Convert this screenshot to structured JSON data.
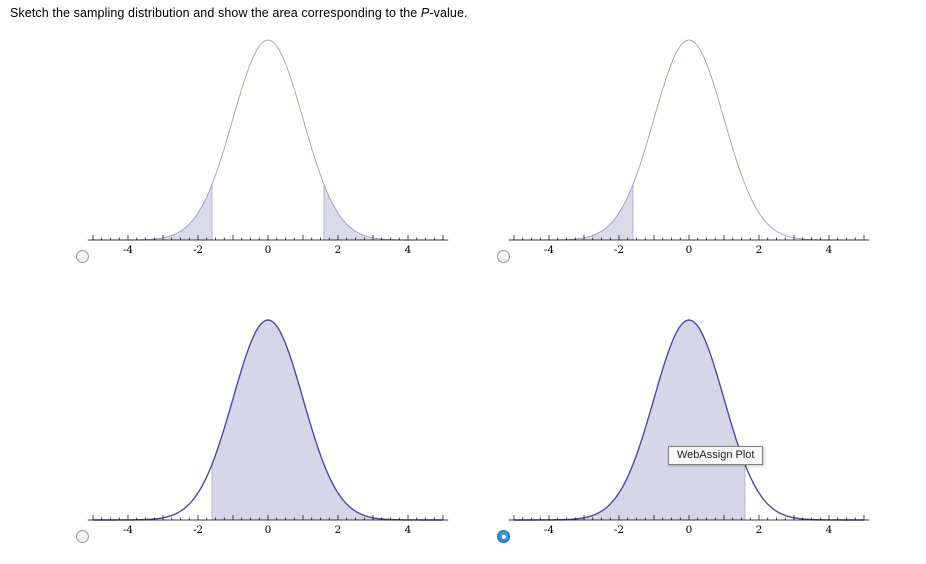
{
  "question": {
    "prefix": "Sketch the sampling distribution and show the area corresponding to the ",
    "italic": "P",
    "suffix": "-value."
  },
  "tooltip": {
    "label": "WebAssign Plot"
  },
  "options": {
    "count": 4,
    "selected_index": 3
  },
  "colors": {
    "background": "#ffffff",
    "axis": "#000000",
    "shade_edge": "#a0a0c4",
    "radio_selected": "#2a87d8",
    "radio_border": "#9a9a9a"
  },
  "chart_data": [
    {
      "type": "area",
      "name": "two-tailed",
      "description": "Standard normal curve with both tails shaded beyond |z| = 1.6 (two-tailed P-value)",
      "distribution": "standard normal pdf",
      "x_range": [
        -5,
        5
      ],
      "x_tick_values": [
        -4,
        -2,
        0,
        2,
        4
      ],
      "x_tick_labels": [
        "-4",
        "-2",
        "0",
        "2",
        "4"
      ],
      "minor_tick_step": 0.25,
      "shaded_regions": [
        [
          -5,
          -1.6
        ],
        [
          1.6,
          5
        ]
      ],
      "curve_color": "#9292c6",
      "curve_width": 0.8,
      "shade_color": "#dadae9",
      "selected": false
    },
    {
      "type": "area",
      "name": "left-tail",
      "description": "Standard normal curve with left tail shaded below z = -1.6",
      "distribution": "standard normal pdf",
      "x_range": [
        -5,
        5
      ],
      "x_tick_values": [
        -4,
        -2,
        0,
        2,
        4
      ],
      "x_tick_labels": [
        "-4",
        "-2",
        "0",
        "2",
        "4"
      ],
      "minor_tick_step": 0.25,
      "shaded_regions": [
        [
          -5,
          -1.6
        ]
      ],
      "curve_color": "#9292c6",
      "curve_width": 0.8,
      "shade_color": "#dadae9",
      "selected": false
    },
    {
      "type": "area",
      "name": "area-right-of-negative",
      "description": "Standard normal curve shaded from z = -1.6 to the right end",
      "distribution": "standard normal pdf",
      "x_range": [
        -5,
        5
      ],
      "x_tick_values": [
        -4,
        -2,
        0,
        2,
        4
      ],
      "x_tick_labels": [
        "-4",
        "-2",
        "0",
        "2",
        "4"
      ],
      "minor_tick_step": 0.25,
      "shaded_regions": [
        [
          -1.6,
          5
        ]
      ],
      "curve_color": "#4a4aaa",
      "curve_width": 1.4,
      "shade_color": "#d6d6e8",
      "selected": false
    },
    {
      "type": "area",
      "name": "area-left-of-positive",
      "description": "Standard normal curve shaded from the left end up to z = 1.6 (selected answer)",
      "distribution": "standard normal pdf",
      "x_range": [
        -5,
        5
      ],
      "x_tick_values": [
        -4,
        -2,
        0,
        2,
        4
      ],
      "x_tick_labels": [
        "-4",
        "-2",
        "0",
        "2",
        "4"
      ],
      "minor_tick_step": 0.25,
      "shaded_regions": [
        [
          -5,
          1.6
        ]
      ],
      "curve_color": "#4a4aaa",
      "curve_width": 1.4,
      "shade_color": "#d6d6e8",
      "selected": true,
      "tooltip": "WebAssign Plot"
    }
  ]
}
